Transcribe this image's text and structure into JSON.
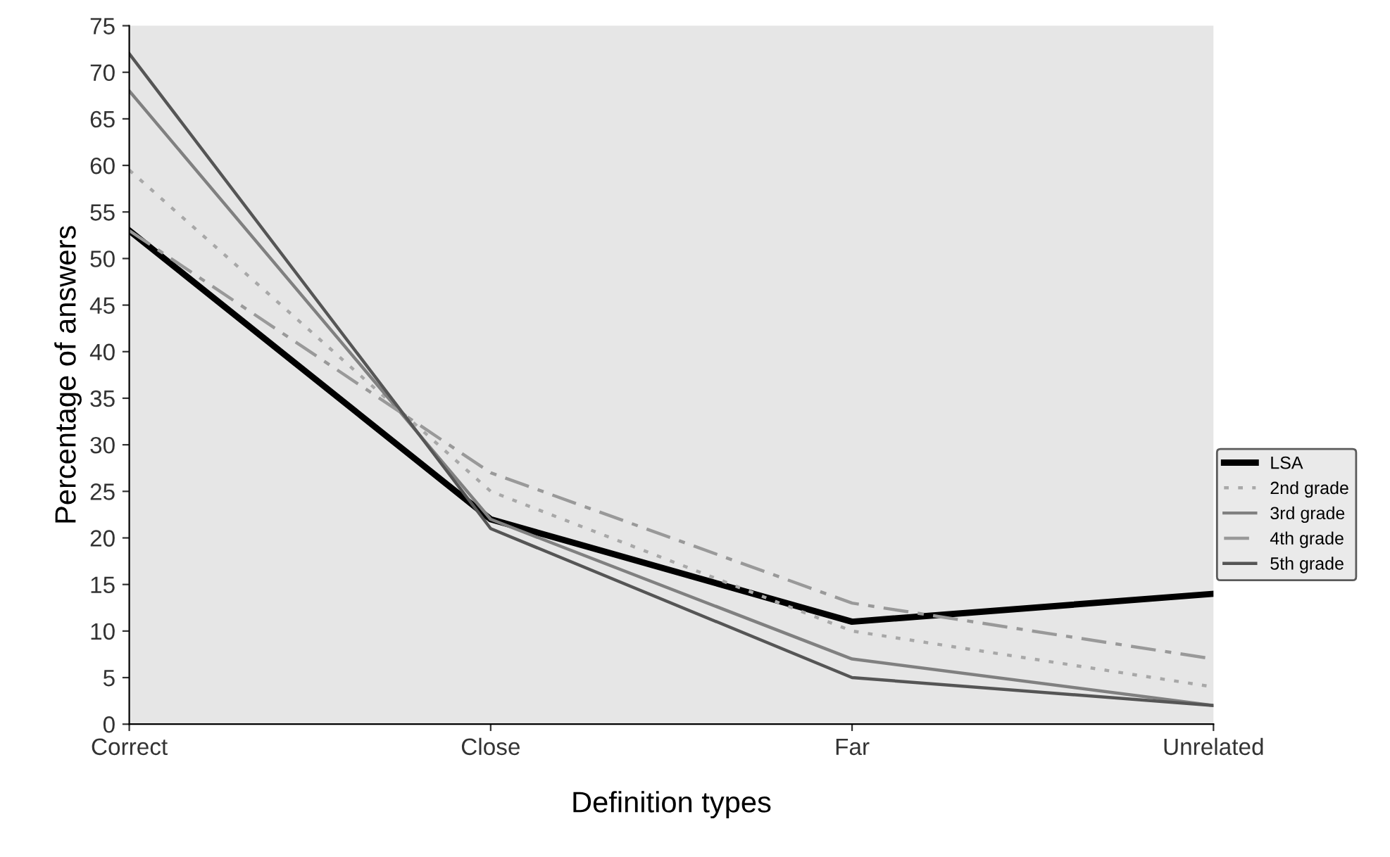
{
  "chart_data": {
    "type": "line",
    "xlabel": "Definition types",
    "ylabel": "Percentage of answers",
    "categories": [
      "Correct",
      "Close",
      "Far",
      "Unrelated"
    ],
    "series": [
      {
        "name": "LSA",
        "color": "#000000",
        "values": [
          53,
          22,
          11,
          14
        ],
        "line_style": "solid"
      },
      {
        "name": "2nd grade",
        "color": "#a8a8a8",
        "values": [
          59.5,
          25,
          10,
          4
        ],
        "line_style": "dotted"
      },
      {
        "name": "3rd grade",
        "color": "#808080",
        "values": [
          68,
          22,
          7,
          2
        ],
        "line_style": "solid"
      },
      {
        "name": "4th grade",
        "color": "#999999",
        "values": [
          53,
          27,
          13,
          7
        ],
        "line_style": "dashed"
      },
      {
        "name": "5th grade",
        "color": "#555555",
        "values": [
          72,
          21,
          5,
          2
        ],
        "line_style": "solid"
      }
    ],
    "ylim": [
      0,
      75
    ],
    "yticks": [
      0,
      5,
      10,
      15,
      20,
      25,
      30,
      35,
      40,
      45,
      50,
      55,
      60,
      65,
      70,
      75
    ],
    "grid": false,
    "legend": "right",
    "marker": "none"
  }
}
